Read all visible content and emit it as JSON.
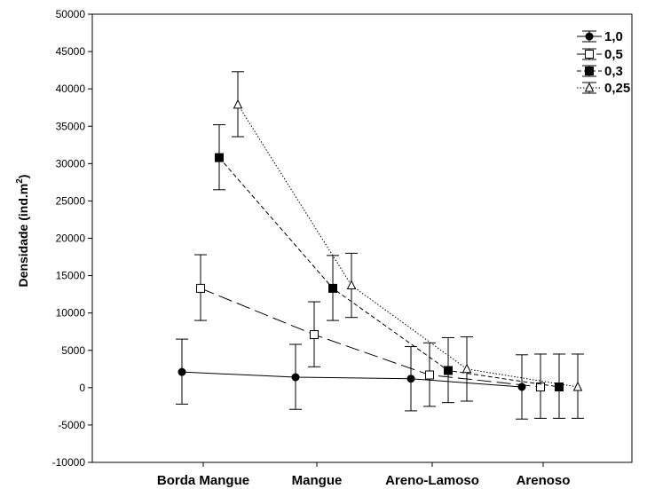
{
  "chart_data": {
    "type": "line",
    "title": "",
    "ylabel": "Densidade (ind.m²)",
    "ylabel_main": "Densidade (ind.m",
    "ylabel_sup": "2",
    "ylabel_end": ")",
    "xlabel": "",
    "ylim": [
      -10000,
      50000
    ],
    "y_ticks": [
      "50000",
      "45000",
      "40000",
      "35000",
      "30000",
      "25000",
      "20000",
      "15000",
      "10000",
      "5000",
      "0",
      "-5000",
      "-10000"
    ],
    "categories": [
      "Borda Mangue",
      "Mangue",
      "Areno-Lamoso",
      "Arenoso"
    ],
    "grid": false,
    "legend_position": "top-right",
    "series": [
      {
        "name": "1,0",
        "marker": "filled-circle",
        "dash": "solid",
        "values": [
          2100,
          1400,
          1200,
          100
        ],
        "err_low": [
          -2200,
          -2900,
          -3100,
          -4200
        ],
        "err_high": [
          6500,
          5800,
          5500,
          4400
        ]
      },
      {
        "name": "0,5",
        "marker": "open-square",
        "dash": "long-dash",
        "values": [
          13300,
          7100,
          1700,
          100
        ],
        "err_low": [
          9000,
          2800,
          -2500,
          -4100
        ],
        "err_high": [
          17800,
          11500,
          6000,
          4500
        ]
      },
      {
        "name": "0,3",
        "marker": "filled-square",
        "dash": "short-dash",
        "values": [
          30800,
          13300,
          2300,
          100
        ],
        "err_low": [
          26500,
          9000,
          -2000,
          -4100
        ],
        "err_high": [
          35200,
          17700,
          6700,
          4500
        ]
      },
      {
        "name": "0,25",
        "marker": "open-triangle",
        "dash": "dotted",
        "values": [
          37900,
          13700,
          2500,
          100
        ],
        "err_low": [
          33600,
          9400,
          -1800,
          -4100
        ],
        "err_high": [
          42300,
          18000,
          6800,
          4500
        ]
      }
    ]
  }
}
